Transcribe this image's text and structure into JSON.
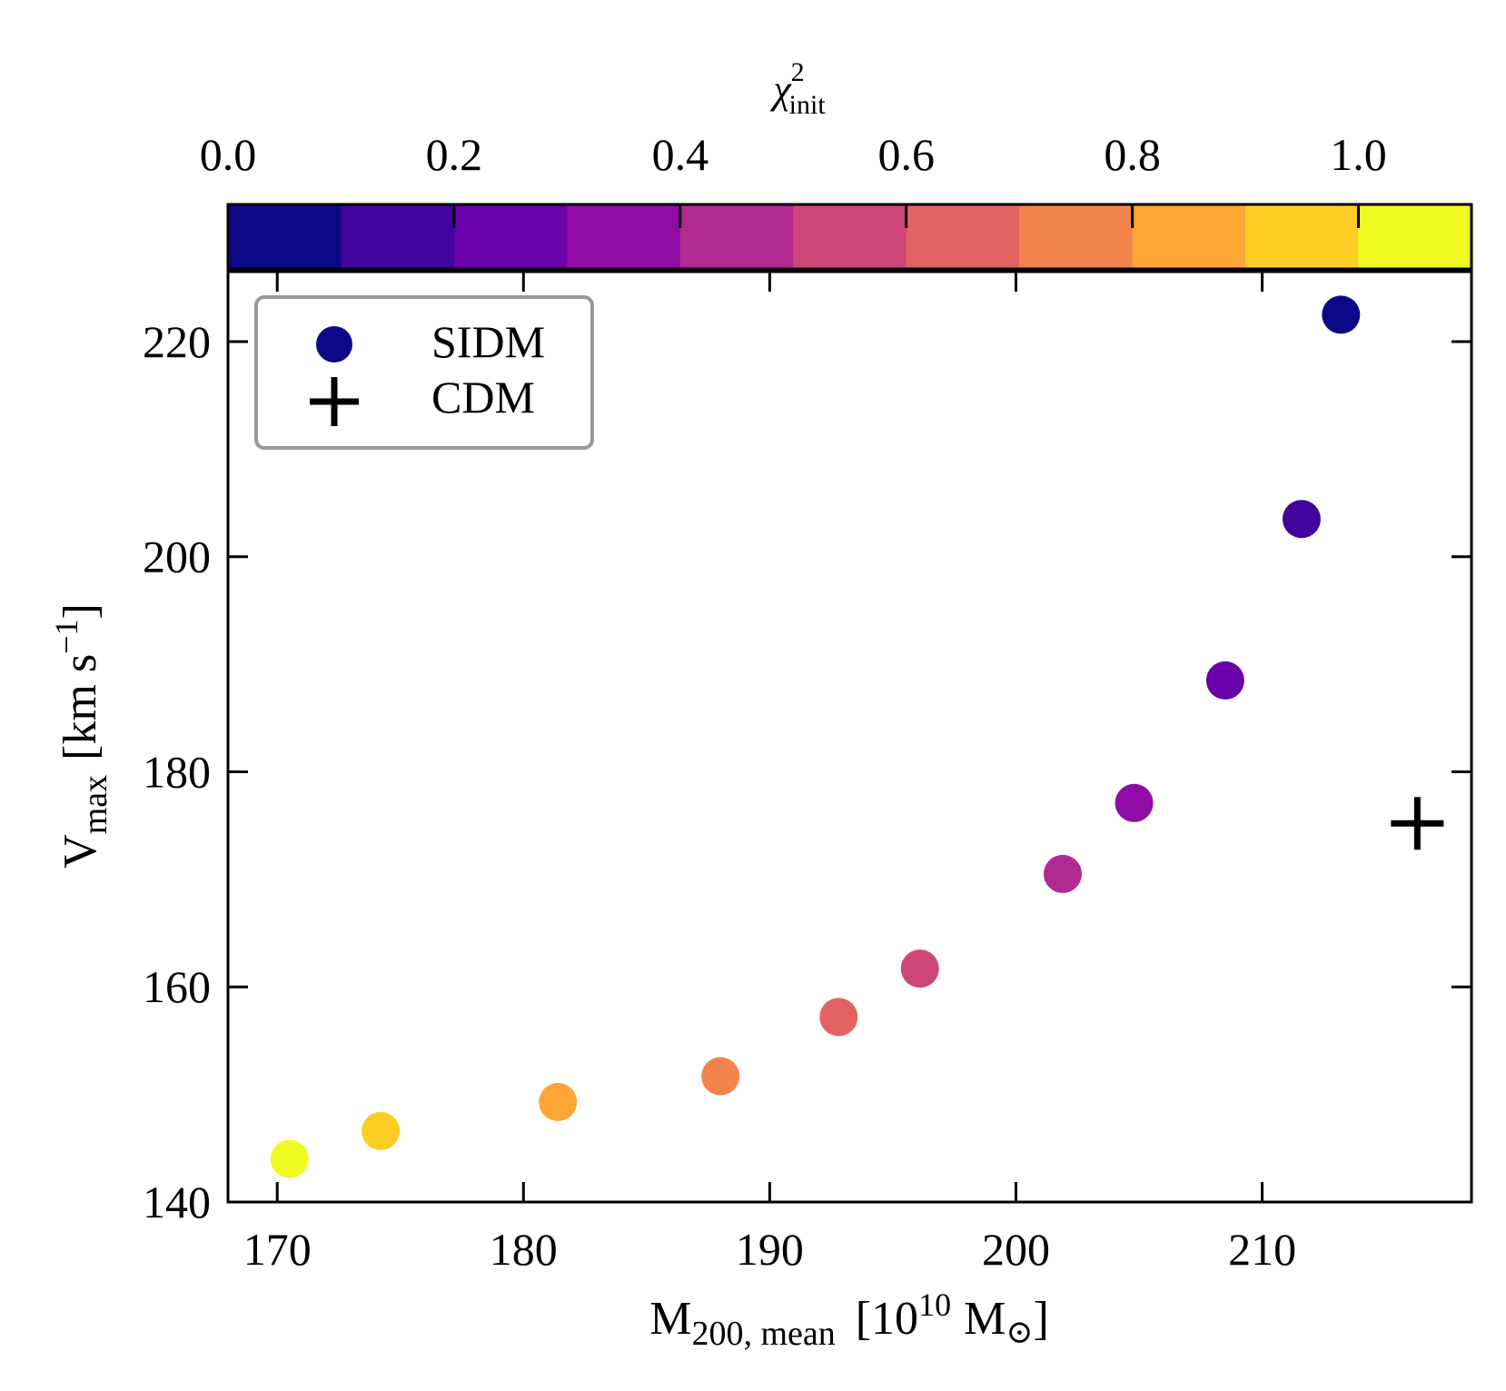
{
  "chart_data": {
    "type": "scatter",
    "xlabel": {
      "main": "M",
      "sub": "200, mean",
      "open": "[10",
      "exp": "10",
      "unit": "M",
      "sun": "⊙",
      "close": "]"
    },
    "ylabel": {
      "main": "V",
      "sub": "max",
      "open": "[km s",
      "exp": "−1",
      "close": "]"
    },
    "xlim": [
      168,
      218.5
    ],
    "ylim": [
      140,
      226.5
    ],
    "xticks": [
      {
        "value": 170,
        "label": "170"
      },
      {
        "value": 180,
        "label": "180"
      },
      {
        "value": 190,
        "label": "190"
      },
      {
        "value": 200,
        "label": "200"
      },
      {
        "value": 210,
        "label": "210"
      }
    ],
    "yticks": [
      {
        "value": 140,
        "label": "140"
      },
      {
        "value": 160,
        "label": "160"
      },
      {
        "value": 180,
        "label": "180"
      },
      {
        "value": 200,
        "label": "200"
      },
      {
        "value": 220,
        "label": "220"
      }
    ],
    "colorbar": {
      "label": {
        "main": "χ",
        "sup": "2",
        "sub": "init"
      },
      "range": [
        0.0,
        1.1
      ],
      "bins": [
        "#0d0887",
        "#41049d",
        "#6a00a8",
        "#8f0da4",
        "#b12a90",
        "#cc4778",
        "#e16462",
        "#f2844b",
        "#fca636",
        "#fcce25",
        "#f0f921"
      ],
      "ticks": [
        {
          "value": 0.0,
          "label": "0.0"
        },
        {
          "value": 0.2,
          "label": "0.2"
        },
        {
          "value": 0.4,
          "label": "0.4"
        },
        {
          "value": 0.6,
          "label": "0.6"
        },
        {
          "value": 0.8,
          "label": "0.8"
        },
        {
          "value": 1.0,
          "label": "1.0"
        }
      ]
    },
    "series": [
      {
        "name": "SIDM",
        "marker": "circle",
        "points": [
          {
            "x": 170.5,
            "y": 144.0,
            "c": 1.05
          },
          {
            "x": 174.2,
            "y": 146.6,
            "c": 0.95
          },
          {
            "x": 181.4,
            "y": 149.3,
            "c": 0.85
          },
          {
            "x": 188.0,
            "y": 151.7,
            "c": 0.75
          },
          {
            "x": 192.8,
            "y": 157.2,
            "c": 0.65
          },
          {
            "x": 196.1,
            "y": 161.7,
            "c": 0.55
          },
          {
            "x": 201.9,
            "y": 170.5,
            "c": 0.45
          },
          {
            "x": 204.8,
            "y": 177.1,
            "c": 0.35
          },
          {
            "x": 208.5,
            "y": 188.5,
            "c": 0.25
          },
          {
            "x": 211.6,
            "y": 203.5,
            "c": 0.15
          },
          {
            "x": 213.2,
            "y": 222.5,
            "c": 0.05
          }
        ]
      },
      {
        "name": "CDM",
        "marker": "plus",
        "points": [
          {
            "x": 216.3,
            "y": 175.2
          }
        ]
      }
    ],
    "legend": {
      "placement": "top-left",
      "entries": [
        "SIDM",
        "CDM"
      ]
    },
    "colors": {
      "legend_marker": "#0d0887",
      "legend_border": "#999999",
      "axes": "#000000"
    }
  }
}
